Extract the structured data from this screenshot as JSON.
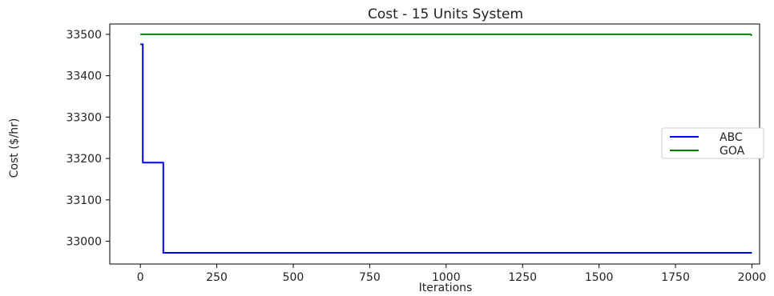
{
  "chart_data": {
    "type": "line",
    "title": "Cost - 15 Units System",
    "xlabel": "Iterations",
    "ylabel": "Cost ($/hr)",
    "xlim": [
      -100,
      2025
    ],
    "ylim": [
      32945,
      33525
    ],
    "xticks": [
      0,
      250,
      500,
      750,
      1000,
      1250,
      1500,
      1750,
      2000
    ],
    "yticks": [
      33000,
      33100,
      33200,
      33300,
      33400,
      33500
    ],
    "grid": false,
    "legend": "center-right",
    "series": [
      {
        "name": "ABC",
        "color": "#0000ff",
        "step": true,
        "x": [
          0,
          8,
          8,
          75,
          75,
          2000
        ],
        "y": [
          33476,
          33476,
          33190,
          33190,
          32972,
          32972
        ]
      },
      {
        "name": "GOA",
        "color": "#008000",
        "step": false,
        "x": [
          0,
          1995,
          2000
        ],
        "y": [
          33500,
          33500,
          33497
        ]
      }
    ]
  }
}
